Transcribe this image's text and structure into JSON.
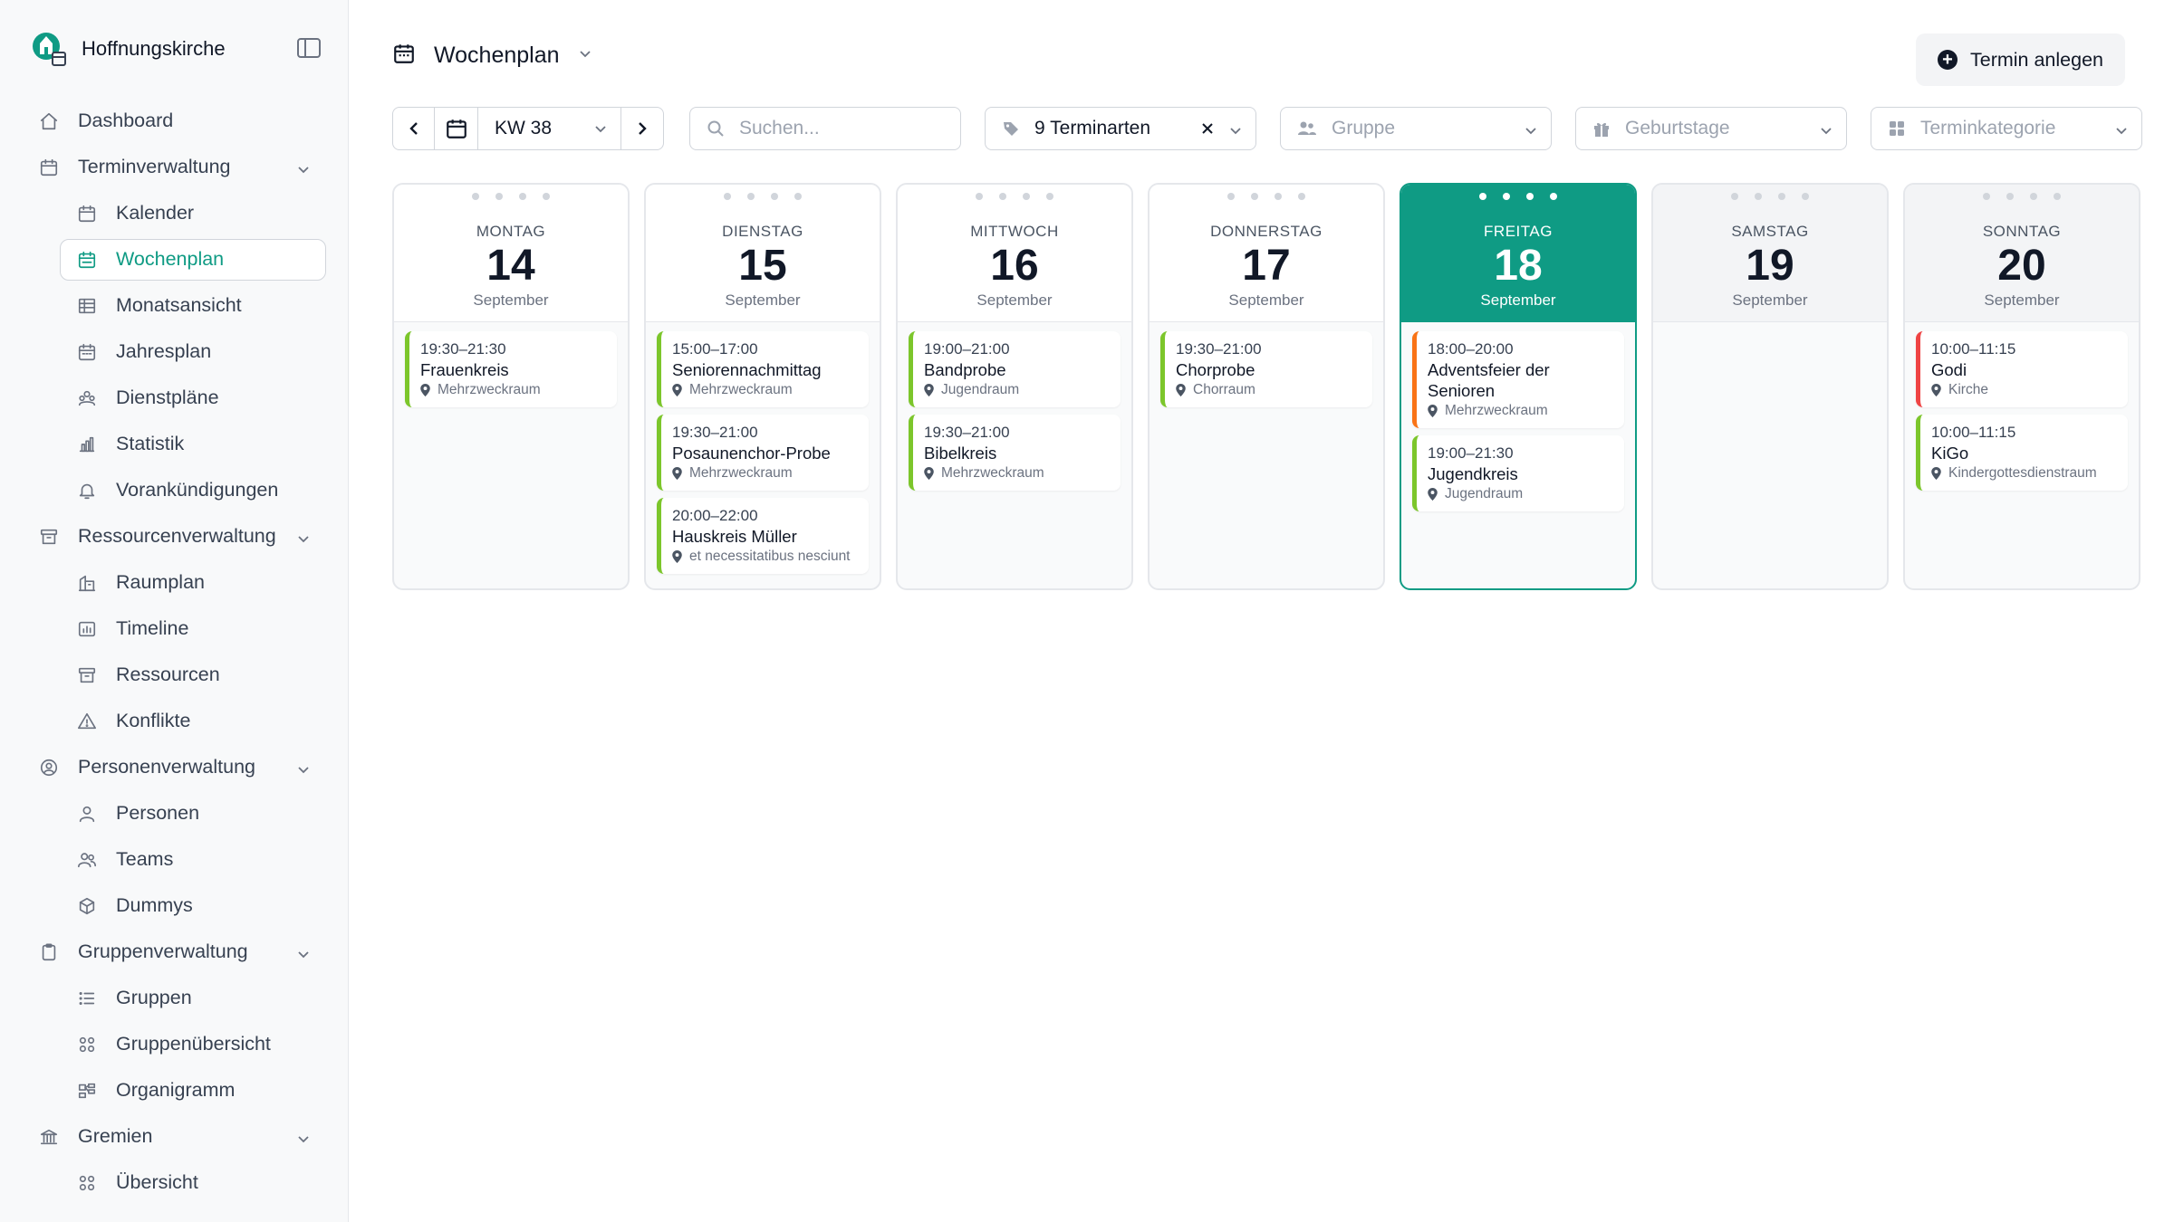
{
  "app": {
    "name": "Hoffnungskirche"
  },
  "nav": [
    {
      "type": "item",
      "label": "Dashboard",
      "icon": "home-icon"
    },
    {
      "type": "group",
      "label": "Terminverwaltung",
      "icon": "calendar-icon"
    },
    {
      "type": "child",
      "label": "Kalender",
      "icon": "calendar-icon"
    },
    {
      "type": "child",
      "label": "Wochenplan",
      "icon": "calendar-week-icon",
      "active": true
    },
    {
      "type": "child",
      "label": "Monatsansicht",
      "icon": "table-icon"
    },
    {
      "type": "child",
      "label": "Jahresplan",
      "icon": "calendar-year-icon"
    },
    {
      "type": "child",
      "label": "Dienstpläne",
      "icon": "roster-icon"
    },
    {
      "type": "child",
      "label": "Statistik",
      "icon": "bar-chart-icon"
    },
    {
      "type": "child",
      "label": "Vorankündigungen",
      "icon": "bell-icon"
    },
    {
      "type": "group",
      "label": "Ressourcenverwaltung",
      "icon": "archive-icon"
    },
    {
      "type": "child",
      "label": "Raumplan",
      "icon": "building-icon"
    },
    {
      "type": "child",
      "label": "Timeline",
      "icon": "timeline-icon"
    },
    {
      "type": "child",
      "label": "Ressourcen",
      "icon": "archive-icon"
    },
    {
      "type": "child",
      "label": "Konflikte",
      "icon": "warning-icon"
    },
    {
      "type": "group",
      "label": "Personenverwaltung",
      "icon": "user-circle-icon"
    },
    {
      "type": "child",
      "label": "Personen",
      "icon": "user-icon"
    },
    {
      "type": "child",
      "label": "Teams",
      "icon": "users-icon"
    },
    {
      "type": "child",
      "label": "Dummys",
      "icon": "cube-icon"
    },
    {
      "type": "group",
      "label": "Gruppenverwaltung",
      "icon": "clipboard-icon"
    },
    {
      "type": "child",
      "label": "Gruppen",
      "icon": "list-icon"
    },
    {
      "type": "child",
      "label": "Gruppenübersicht",
      "icon": "grid-icon"
    },
    {
      "type": "child",
      "label": "Organigramm",
      "icon": "org-chart-icon"
    },
    {
      "type": "group",
      "label": "Gremien",
      "icon": "bank-icon"
    },
    {
      "type": "child",
      "label": "Übersicht",
      "icon": "grid-icon"
    }
  ],
  "header": {
    "title": "Wochenplan",
    "new_button": "Termin anlegen"
  },
  "filters": {
    "week": "KW 38",
    "search_placeholder": "Suchen...",
    "types": "9 Terminarten",
    "group_placeholder": "Gruppe",
    "birthdays_placeholder": "Geburtstage",
    "category_placeholder": "Terminkategorie"
  },
  "days": [
    {
      "name": "MONTAG",
      "num": "14",
      "month": "September",
      "events": [
        {
          "time": "19:30–21:30",
          "title": "Frauenkreis",
          "location": "Mehrzweckraum",
          "color": "green"
        }
      ]
    },
    {
      "name": "DIENSTAG",
      "num": "15",
      "month": "September",
      "events": [
        {
          "time": "15:00–17:00",
          "title": "Seniorennachmittag",
          "location": "Mehrzweckraum",
          "color": "green"
        },
        {
          "time": "19:30–21:00",
          "title": "Posaunenchor-Probe",
          "location": "Mehrzweckraum",
          "color": "green"
        },
        {
          "time": "20:00–22:00",
          "title": "Hauskreis Müller",
          "location": "et necessitatibus nesciunt",
          "color": "green"
        }
      ]
    },
    {
      "name": "MITTWOCH",
      "num": "16",
      "month": "September",
      "events": [
        {
          "time": "19:00–21:00",
          "title": "Bandprobe",
          "location": "Jugendraum",
          "color": "green"
        },
        {
          "time": "19:30–21:00",
          "title": "Bibelkreis",
          "location": "Mehrzweckraum",
          "color": "green"
        }
      ]
    },
    {
      "name": "DONNERSTAG",
      "num": "17",
      "month": "September",
      "events": [
        {
          "time": "19:30–21:00",
          "title": "Chorprobe",
          "location": "Chorraum",
          "color": "green"
        }
      ]
    },
    {
      "name": "FREITAG",
      "num": "18",
      "month": "September",
      "today": true,
      "events": [
        {
          "time": "18:00–20:00",
          "title": "Adventsfeier der Senioren",
          "location": "Mehrzweckraum",
          "color": "orange"
        },
        {
          "time": "19:00–21:30",
          "title": "Jugendkreis",
          "location": "Jugendraum",
          "color": "green"
        }
      ]
    },
    {
      "name": "SAMSTAG",
      "num": "19",
      "month": "September",
      "weekend": true,
      "events": []
    },
    {
      "name": "SONNTAG",
      "num": "20",
      "month": "September",
      "weekend": true,
      "events": [
        {
          "time": "10:00–11:15",
          "title": "Godi",
          "location": "Kirche",
          "color": "red"
        },
        {
          "time": "10:00–11:15",
          "title": "KiGo",
          "location": "Kindergottesdienstraum",
          "color": "green"
        }
      ]
    }
  ],
  "colors": {
    "accent": "#0f9b84",
    "green": "#7cc62b",
    "orange": "#f97316",
    "red": "#ef4444"
  }
}
